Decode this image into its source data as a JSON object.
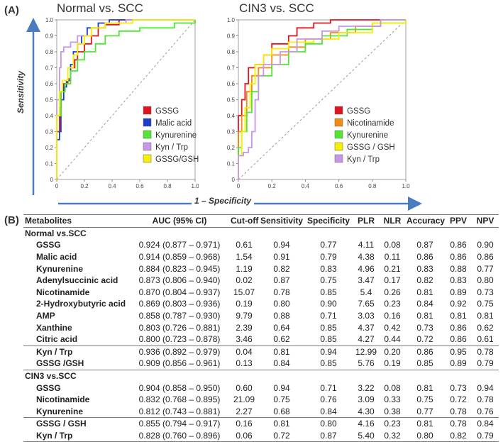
{
  "panel_a_label": "(A)",
  "panel_b_label": "(B)",
  "axis_labels": {
    "y": "Sensitivity",
    "x": "1 – Specificity"
  },
  "colors": {
    "GSSG": "#e0141e",
    "Malic acid": "#1e3cc8",
    "Kynurenine": "#50e632",
    "Kyn / Trp": "#c896e6",
    "GSSG/GSH": "#f5ef00",
    "Nicotinamide": "#f08c14",
    "axis": "#4a7cc0",
    "frame": "#a0a0a0"
  },
  "chart_data": [
    {
      "type": "line",
      "title": "Normal vs. SCC",
      "xlabel": "1 – Specificity",
      "ylabel": "Sensitivity",
      "xlim": [
        0,
        1
      ],
      "ylim": [
        0,
        1
      ],
      "x_ticks": [
        "0",
        "0.2",
        "0.4",
        "0.6",
        "0.8",
        "1.0"
      ],
      "y_ticks": [
        "0",
        "0.1",
        "0.2",
        "0.3",
        "0.4",
        "0.5",
        "0.6",
        "0.7",
        "0.8",
        "0.9",
        "1.0"
      ],
      "legend": [
        "GSSG",
        "Malic acid",
        "Kynurenine",
        "Kyn / Trp",
        "GSSG/GSH"
      ],
      "series": [
        {
          "name": "GSSG",
          "color": "#e0141e",
          "points": [
            [
              0,
              0
            ],
            [
              0,
              0.3
            ],
            [
              0.02,
              0.45
            ],
            [
              0.03,
              0.55
            ],
            [
              0.05,
              0.6
            ],
            [
              0.08,
              0.63
            ],
            [
              0.1,
              0.7
            ],
            [
              0.13,
              0.75
            ],
            [
              0.15,
              0.8
            ],
            [
              0.2,
              0.85
            ],
            [
              0.25,
              0.9
            ],
            [
              0.3,
              0.95
            ],
            [
              0.35,
              0.97
            ],
            [
              0.45,
              1.0
            ],
            [
              1,
              1
            ]
          ]
        },
        {
          "name": "Malic acid",
          "color": "#1e3cc8",
          "points": [
            [
              0,
              0
            ],
            [
              0,
              0.25
            ],
            [
              0.02,
              0.3
            ],
            [
              0.03,
              0.5
            ],
            [
              0.05,
              0.58
            ],
            [
              0.07,
              0.62
            ],
            [
              0.1,
              0.72
            ],
            [
              0.12,
              0.8
            ],
            [
              0.15,
              0.85
            ],
            [
              0.18,
              0.9
            ],
            [
              0.22,
              0.95
            ],
            [
              0.3,
              0.98
            ],
            [
              0.38,
              1.0
            ],
            [
              1,
              1
            ]
          ]
        },
        {
          "name": "Kynurenine",
          "color": "#50e632",
          "points": [
            [
              0,
              0
            ],
            [
              0,
              0.4
            ],
            [
              0.03,
              0.55
            ],
            [
              0.06,
              0.6
            ],
            [
              0.1,
              0.68
            ],
            [
              0.15,
              0.75
            ],
            [
              0.2,
              0.8
            ],
            [
              0.28,
              0.85
            ],
            [
              0.35,
              0.9
            ],
            [
              0.45,
              0.93
            ],
            [
              0.6,
              0.95
            ],
            [
              0.85,
              0.98
            ],
            [
              1,
              1
            ]
          ]
        },
        {
          "name": "Kyn / Trp",
          "color": "#c896e6",
          "points": [
            [
              0,
              0
            ],
            [
              0,
              0.5
            ],
            [
              0.02,
              0.7
            ],
            [
              0.03,
              0.8
            ],
            [
              0.05,
              0.83
            ],
            [
              0.1,
              0.86
            ],
            [
              0.15,
              0.9
            ],
            [
              0.25,
              0.95
            ],
            [
              0.35,
              0.98
            ],
            [
              0.5,
              1.0
            ],
            [
              1,
              1
            ]
          ]
        },
        {
          "name": "GSSG/GSH",
          "color": "#f5ef00",
          "points": [
            [
              0,
              0
            ],
            [
              0,
              0.4
            ],
            [
              0.02,
              0.55
            ],
            [
              0.04,
              0.62
            ],
            [
              0.08,
              0.7
            ],
            [
              0.12,
              0.78
            ],
            [
              0.15,
              0.85
            ],
            [
              0.2,
              0.9
            ],
            [
              0.25,
              0.95
            ],
            [
              0.35,
              0.98
            ],
            [
              0.55,
              1.0
            ],
            [
              1,
              1
            ]
          ]
        }
      ]
    },
    {
      "type": "line",
      "title": "CIN3 vs. SCC",
      "xlabel": "1 – Specificity",
      "ylabel": "Sensitivity",
      "xlim": [
        0,
        1
      ],
      "ylim": [
        0,
        1
      ],
      "x_ticks": [
        "0",
        "0.2",
        "0.4",
        "0.6",
        "0.8",
        "1.0"
      ],
      "y_ticks": [
        "0",
        "0.1",
        "0.2",
        "0.3",
        "0.4",
        "0.5",
        "0.6",
        "0.7",
        "0.8",
        "0.9",
        "1.0"
      ],
      "legend": [
        "GSSG",
        "Nicotinamide",
        "Kynurenine",
        "GSSG / GSH",
        "Kyn / Trp"
      ],
      "series": [
        {
          "name": "GSSG",
          "color": "#e0141e",
          "points": [
            [
              0,
              0
            ],
            [
              0,
              0.4
            ],
            [
              0.02,
              0.5
            ],
            [
              0.04,
              0.6
            ],
            [
              0.06,
              0.7
            ],
            [
              0.1,
              0.72
            ],
            [
              0.15,
              0.78
            ],
            [
              0.2,
              0.85
            ],
            [
              0.3,
              0.9
            ],
            [
              0.35,
              0.95
            ],
            [
              0.45,
              0.98
            ],
            [
              0.55,
              1.0
            ],
            [
              1,
              1
            ]
          ]
        },
        {
          "name": "Nicotinamide",
          "color": "#f08c14",
          "points": [
            [
              0,
              0
            ],
            [
              0,
              0.3
            ],
            [
              0.02,
              0.4
            ],
            [
              0.05,
              0.55
            ],
            [
              0.08,
              0.65
            ],
            [
              0.12,
              0.7
            ],
            [
              0.2,
              0.78
            ],
            [
              0.3,
              0.83
            ],
            [
              0.4,
              0.88
            ],
            [
              0.55,
              0.92
            ],
            [
              0.7,
              0.96
            ],
            [
              0.85,
              1.0
            ],
            [
              1,
              1
            ]
          ]
        },
        {
          "name": "Kynurenine",
          "color": "#50e632",
          "points": [
            [
              0,
              0
            ],
            [
              0,
              0.2
            ],
            [
              0.02,
              0.3
            ],
            [
              0.05,
              0.42
            ],
            [
              0.08,
              0.55
            ],
            [
              0.12,
              0.65
            ],
            [
              0.2,
              0.72
            ],
            [
              0.3,
              0.8
            ],
            [
              0.4,
              0.85
            ],
            [
              0.5,
              0.9
            ],
            [
              0.65,
              0.94
            ],
            [
              0.8,
              0.98
            ],
            [
              1,
              1
            ]
          ]
        },
        {
          "name": "GSSG / GSH",
          "color": "#f5ef00",
          "points": [
            [
              0,
              0
            ],
            [
              0,
              0.15
            ],
            [
              0.02,
              0.3
            ],
            [
              0.04,
              0.45
            ],
            [
              0.07,
              0.6
            ],
            [
              0.1,
              0.72
            ],
            [
              0.15,
              0.78
            ],
            [
              0.2,
              0.82
            ],
            [
              0.3,
              0.86
            ],
            [
              0.45,
              0.88
            ],
            [
              0.6,
              0.92
            ],
            [
              0.8,
              0.98
            ],
            [
              1,
              1
            ]
          ]
        },
        {
          "name": "Kyn / Trp",
          "color": "#c896e6",
          "points": [
            [
              0,
              0
            ],
            [
              0,
              0.15
            ],
            [
              0.03,
              0.17
            ],
            [
              0.06,
              0.2
            ],
            [
              0.08,
              0.3
            ],
            [
              0.1,
              0.5
            ],
            [
              0.12,
              0.65
            ],
            [
              0.15,
              0.72
            ],
            [
              0.25,
              0.8
            ],
            [
              0.35,
              0.88
            ],
            [
              0.5,
              0.93
            ],
            [
              0.6,
              0.96
            ],
            [
              0.85,
              1.0
            ],
            [
              1,
              1
            ]
          ]
        }
      ]
    }
  ],
  "table": {
    "headers": [
      "Metabolites",
      "AUC (95% CI)",
      "Cut-off",
      "Sensitivity",
      "Specificity",
      "PLR",
      "NLR",
      "Accuracy",
      "PPV",
      "NPV"
    ],
    "group1": "Normal vs.SCC",
    "rows1": [
      [
        "GSSG",
        "0.924 (0.877 – 0.971)",
        "0.61",
        "0.94",
        "0.77",
        "4.11",
        "0.08",
        "0.87",
        "0.86",
        "0.90"
      ],
      [
        "Malic acid",
        "0.914 (0.859 – 0.968)",
        "1.54",
        "0.91",
        "0.79",
        "4.38",
        "0.11",
        "0.86",
        "0.86",
        "0.86"
      ],
      [
        "Kynurenine",
        "0.884 (0.823 – 0.945)",
        "1.19",
        "0.82",
        "0.83",
        "4.96",
        "0.21",
        "0.83",
        "0.88",
        "0.77"
      ],
      [
        "Adenylsuccinic acid",
        "0.873 (0.806 – 0.940)",
        "0.02",
        "0.87",
        "0.75",
        "3.47",
        "0.17",
        "0.82",
        "0.83",
        "0.80"
      ],
      [
        "Nicotinamide",
        "0.870 (0.804 – 0.937)",
        "15.07",
        "0.78",
        "0.85",
        "5.4",
        "0.26",
        "0.81",
        "0.89",
        "0.73"
      ],
      [
        "2-Hydroxybutyric acid",
        "0.869 (0.803 – 0.936)",
        "0.19",
        "0.80",
        "0.90",
        "7.65",
        "0.23",
        "0.84",
        "0.92",
        "0.75"
      ],
      [
        "AMP",
        "0.858 (0.787 – 0.930)",
        "9.79",
        "0.88",
        "0.71",
        "3.03",
        "0.16",
        "0.81",
        "0.81",
        "0.81"
      ],
      [
        "Xanthine",
        "0.803 (0.726 – 0.881)",
        "2.39",
        "0.64",
        "0.85",
        "4.37",
        "0.42",
        "0.73",
        "0.86",
        "0.62"
      ],
      [
        "Citric acid",
        "0.800 (0.723 – 0.878)",
        "3.46",
        "0.62",
        "0.85",
        "4.27",
        "0.44",
        "0.72",
        "0.86",
        "0.61"
      ]
    ],
    "rows1b": [
      [
        "Kyn / Trp",
        "0.936 (0.892 – 0.979)",
        "0.04",
        "0.81",
        "0.94",
        "12.99",
        "0.20",
        "0.86",
        "0.95",
        "0.78"
      ],
      [
        "GSSG  /GSH",
        "0.909 (0.856 – 0.961)",
        "0.13",
        "0.84",
        "0.85",
        "5.76",
        "0.19",
        "0.85",
        "0.89",
        "0.79"
      ]
    ],
    "group2": "CIN3 vs.SCC",
    "rows2": [
      [
        "GSSG",
        "0.904 (0.858 – 0.950)",
        "0.60",
        "0.94",
        "0.71",
        "3.22",
        "0.08",
        "0.81",
        "0.73",
        "0.94"
      ],
      [
        "Nicotinamide",
        "0.832 (0.768 – 0.895)",
        "21.09",
        "0.75",
        "0.76",
        "3.09",
        "0.33",
        "0.75",
        "0.72",
        "0.78"
      ],
      [
        "Kynurenine",
        "0.812 (0.743 – 0.881)",
        "2.27",
        "0.68",
        "0.84",
        "4.30",
        "0.38",
        "0.77",
        "0.78",
        "0.76"
      ]
    ],
    "rows2b": [
      [
        "GSSG / GSH",
        "0.855 (0.794 – 0.917)",
        "0.16",
        "0.81",
        "0.80",
        "4.16",
        "0.23",
        "0.81",
        "0.78",
        "0.84"
      ],
      [
        "Kyn / Trp",
        "0.828 (0.760 – 0.896)",
        "0.06",
        "0.72",
        "0.87",
        "5.40",
        "0.32",
        "0.80",
        "0.82",
        "0.79"
      ]
    ]
  }
}
